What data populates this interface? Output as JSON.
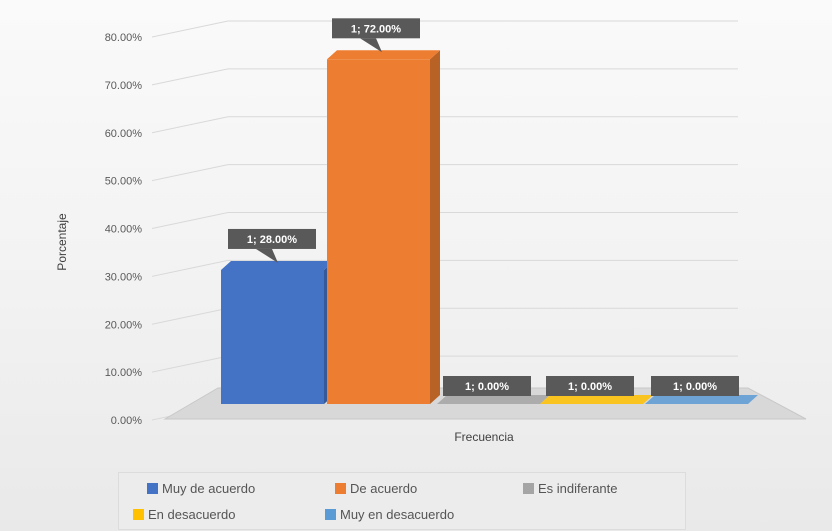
{
  "chart_data": {
    "type": "bar",
    "categories": [
      "1"
    ],
    "series": [
      {
        "name": "Muy de acuerdo",
        "values": [
          28.0
        ],
        "label": "1; 28.00%",
        "color": "#4472c4"
      },
      {
        "name": "De acuerdo",
        "values": [
          72.0
        ],
        "label": "1; 72.00%",
        "color": "#ed7d31"
      },
      {
        "name": "Es indiferante",
        "values": [
          0.0
        ],
        "label": "1; 0.00%",
        "color": "#a5a5a5"
      },
      {
        "name": "En desacuerdo",
        "values": [
          0.0
        ],
        "label": "1; 0.00%",
        "color": "#ffc000"
      },
      {
        "name": "Muy en desacuerdo",
        "values": [
          0.0
        ],
        "label": "1; 0.00%",
        "color": "#5b9bd5"
      }
    ],
    "xlabel": "Frecuencia",
    "ylabel": "Porcentaje",
    "ylim": [
      0,
      80
    ],
    "yticks": [
      "0.00%",
      "10.00%",
      "20.00%",
      "30.00%",
      "40.00%",
      "50.00%",
      "60.00%",
      "70.00%",
      "80.00%"
    ],
    "grid": true,
    "legend_position": "bottom",
    "data_label_color": "#595959"
  }
}
